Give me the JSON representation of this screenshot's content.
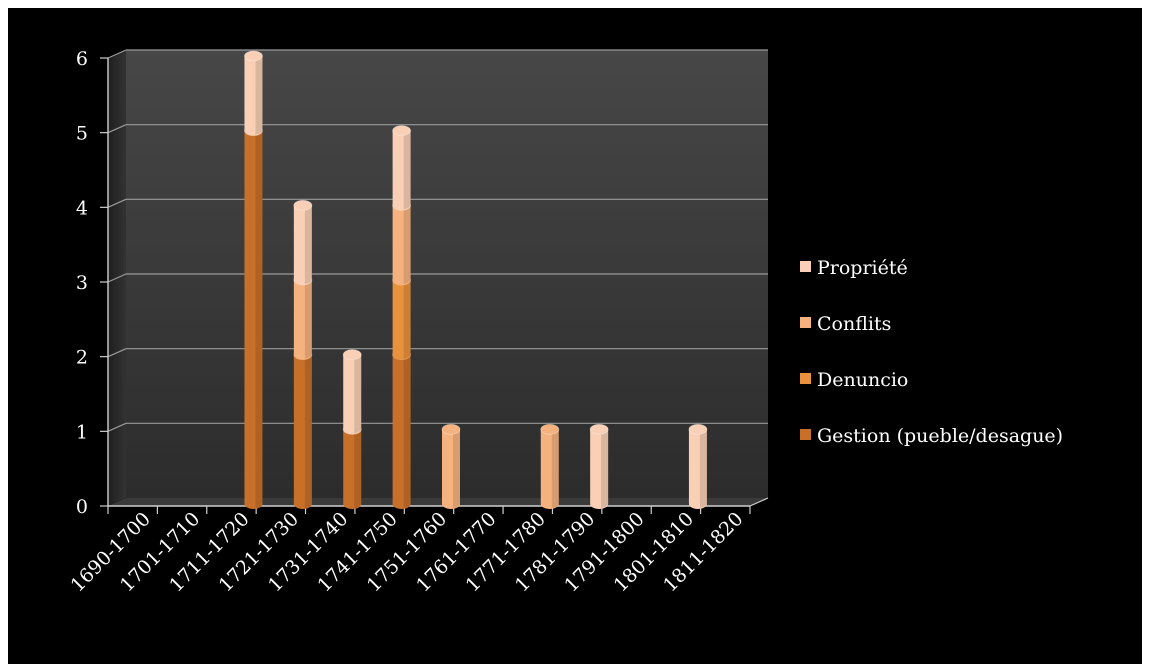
{
  "chart_data": {
    "type": "bar",
    "stacked": true,
    "three_d": true,
    "categories": [
      "1690-1700",
      "1701-1710",
      "1711-1720",
      "1721-1730",
      "1731-1740",
      "1741-1750",
      "1751-1760",
      "1761-1770",
      "1771-1780",
      "1781-1790",
      "1791-1800",
      "1801-1810",
      "1811-1820"
    ],
    "series": [
      {
        "name": "Gestion (pueble/desague)",
        "color": "#c8702a",
        "values": [
          0,
          0,
          5,
          2,
          1,
          2,
          0,
          0,
          0,
          0,
          0,
          0,
          0
        ]
      },
      {
        "name": "Denuncio",
        "color": "#e9923e",
        "values": [
          0,
          0,
          0,
          0,
          0,
          1,
          0,
          0,
          0,
          0,
          0,
          0,
          0
        ]
      },
      {
        "name": "Conflits",
        "color": "#f6b27e",
        "values": [
          0,
          0,
          0,
          1,
          0,
          1,
          1,
          0,
          1,
          0,
          0,
          0,
          0
        ]
      },
      {
        "name": "Propriété",
        "color": "#f9d0b6",
        "values": [
          0,
          0,
          1,
          1,
          1,
          1,
          0,
          0,
          0,
          1,
          0,
          1,
          0
        ]
      }
    ],
    "yticks": [
      "0",
      "1",
      "2",
      "3",
      "4",
      "5",
      "6"
    ],
    "ylim": [
      0,
      6
    ],
    "grid": true,
    "legend_position": "right",
    "title": "",
    "xlabel": "",
    "ylabel": ""
  }
}
